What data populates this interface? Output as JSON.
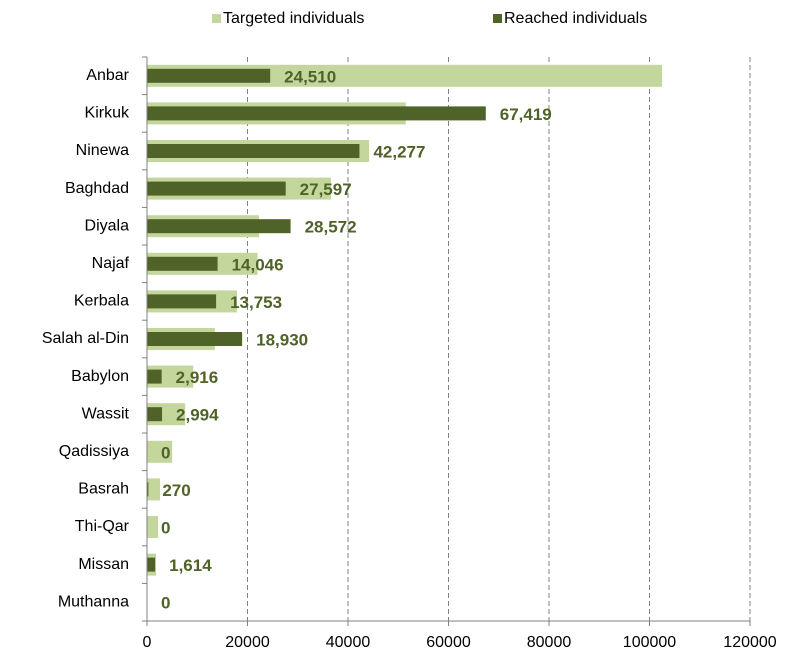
{
  "chart_data": {
    "type": "bar",
    "orientation": "horizontal",
    "categories": [
      "Anbar",
      "Kirkuk",
      "Ninewa",
      "Baghdad",
      "Diyala",
      "Najaf",
      "Kerbala",
      "Salah al-Din",
      "Babylon",
      "Wassit",
      "Qadissiya",
      "Basrah",
      "Thi-Qar",
      "Missan",
      "Muthanna"
    ],
    "series": [
      {
        "name": "Targeted individuals",
        "color": "#c3d69b",
        "values": [
          102500,
          51500,
          44200,
          36600,
          22300,
          22000,
          17900,
          13500,
          9200,
          7600,
          5000,
          2600,
          2200,
          1800,
          0
        ]
      },
      {
        "name": "Reached individuals",
        "color": "#4f6228",
        "values": [
          24510,
          67419,
          42277,
          27597,
          28572,
          14046,
          13753,
          18930,
          2916,
          2994,
          0,
          270,
          0,
          1614,
          0
        ],
        "value_labels": [
          "24,510",
          "67,419",
          "42,277",
          "27,597",
          "28,572",
          "14,046",
          "13,753",
          "18,930",
          "2,916",
          "2,994",
          "0",
          "270",
          "0",
          "1,614",
          "0"
        ]
      }
    ],
    "xlim": [
      0,
      120000
    ],
    "xticks": [
      0,
      20000,
      40000,
      60000,
      80000,
      100000,
      120000
    ],
    "grid": true,
    "legend": "top"
  }
}
